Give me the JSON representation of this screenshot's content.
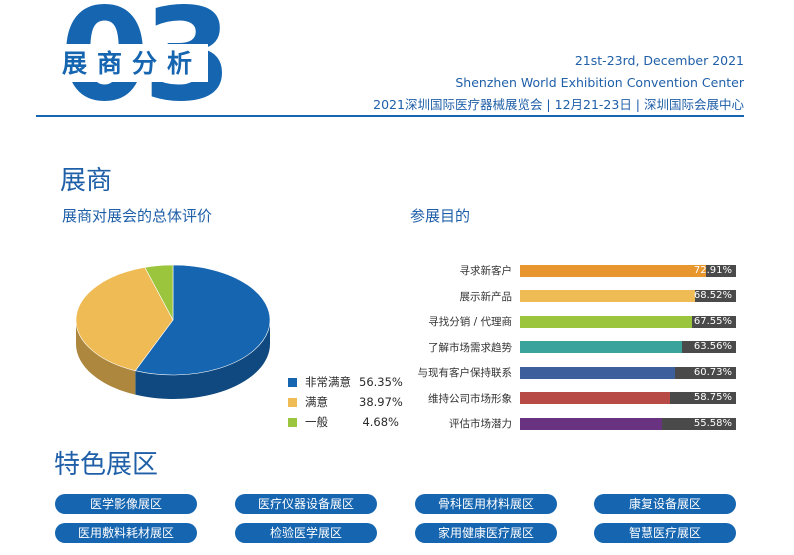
{
  "header": {
    "section_number": "03",
    "section_title": "展商分析",
    "date": "21st-23rd, December 2021",
    "venue": "Shenzhen World Exhibition Convention Center",
    "expo_line": "2021深圳国际医疗器械展览会 | 12月21-23日 | 深圳国际会展中心",
    "brand_color": "#1565b0"
  },
  "exhibitors": {
    "heading": "展商",
    "satisfaction_title": "展商对展会的总体评价",
    "purpose_title": "参展目的"
  },
  "chart_data": [
    {
      "type": "pie",
      "title": "展商对展会的总体评价",
      "categories": [
        "非常满意",
        "满意",
        "一般"
      ],
      "values": [
        56.35,
        38.97,
        4.68
      ],
      "labels": [
        "56.35%",
        "38.97%",
        "4.68%"
      ],
      "colors": [
        "#1565b0",
        "#efbb55",
        "#9bc53d"
      ],
      "legend": "bottom-right"
    },
    {
      "type": "bar",
      "orientation": "horizontal",
      "title": "参展目的",
      "categories": [
        "寻求新客户",
        "展示新产品",
        "寻找分销 / 代理商",
        "了解市场需求趋势",
        "与现有客户保持联系",
        "维持公司市场形象",
        "评估市场潜力"
      ],
      "values": [
        72.91,
        68.52,
        67.55,
        63.56,
        60.73,
        58.75,
        55.58
      ],
      "labels": [
        "72.91%",
        "68.52%",
        "67.55%",
        "63.56%",
        "60.73%",
        "58.75%",
        "55.58%"
      ],
      "colors": [
        "#e8962e",
        "#efbb55",
        "#9bc53d",
        "#3aa39b",
        "#3d5f9c",
        "#b84a45",
        "#6a3381"
      ],
      "xlim": [
        0,
        100
      ]
    }
  ],
  "zones": {
    "heading": "特色展区",
    "items": [
      "医学影像展区",
      "医疗仪器设备展区",
      "骨科医用材料展区",
      "康复设备展区",
      "医用敷料耗材展区",
      "检验医学展区",
      "家用健康医疗展区",
      "智慧医疗展区"
    ]
  }
}
